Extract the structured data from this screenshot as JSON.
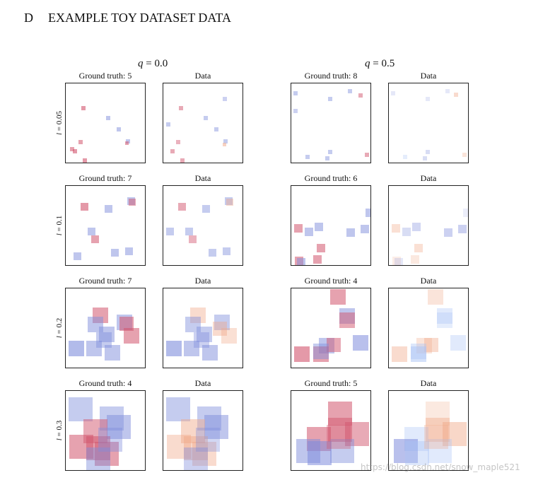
{
  "section": {
    "letter": "D",
    "title": "EXAMPLE TOY DATASET DATA"
  },
  "columns": [
    {
      "q_var": "q",
      "q_value": "= 0.0"
    },
    {
      "q_var": "q",
      "q_value": "= 0.5"
    }
  ],
  "rows": [
    {
      "l_var": "l",
      "l_value": "= 0.05",
      "titles": [
        "Ground truth: 5",
        "Data",
        "Ground truth: 8",
        "Data"
      ]
    },
    {
      "l_var": "l",
      "l_value": "= 0.1",
      "titles": [
        "Ground truth: 7",
        "Data",
        "Ground truth: 6",
        "Data"
      ]
    },
    {
      "l_var": "l",
      "l_value": "= 0.2",
      "titles": [
        "Ground truth: 7",
        "Data",
        "Ground truth: 4",
        "Data"
      ]
    },
    {
      "l_var": "l",
      "l_value": "= 0.3",
      "titles": [
        "Ground truth: 4",
        "Data",
        "Ground truth: 5",
        "Data"
      ]
    }
  ],
  "colors": {
    "red": "#d2556e",
    "blue": "#7f8ddc",
    "orange": "#f0a685",
    "light_blue": "#a9c3f5"
  },
  "watermark": "https://blog.csdn.net/snow_maple521"
}
